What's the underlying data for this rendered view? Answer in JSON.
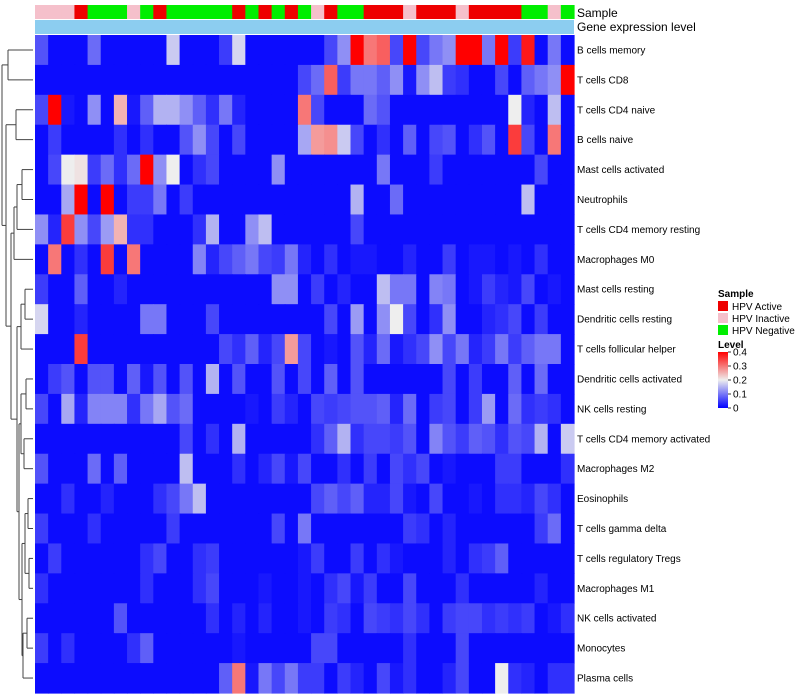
{
  "chart_data": {
    "type": "heatmap",
    "annotation_track_labels": [
      "Sample",
      "Gene expression level"
    ],
    "sample_colors": {
      "HPV Active": "#ee0000",
      "HPV Inactive": "#f5c0cb",
      "HPV Negative": "#00ee00"
    },
    "gene_expression_color": "#8ccdf0",
    "samples": [
      "HPV Inactive",
      "HPV Inactive",
      "HPV Inactive",
      "HPV Active",
      "HPV Negative",
      "HPV Negative",
      "HPV Negative",
      "HPV Inactive",
      "HPV Negative",
      "HPV Active",
      "HPV Negative",
      "HPV Negative",
      "HPV Negative",
      "HPV Negative",
      "HPV Negative",
      "HPV Active",
      "HPV Negative",
      "HPV Active",
      "HPV Negative",
      "HPV Active",
      "HPV Negative",
      "HPV Inactive",
      "HPV Active",
      "HPV Negative",
      "HPV Negative",
      "HPV Active",
      "HPV Active",
      "HPV Active",
      "HPV Inactive",
      "HPV Active",
      "HPV Active",
      "HPV Active",
      "HPV Inactive",
      "HPV Active",
      "HPV Active",
      "HPV Active",
      "HPV Active",
      "HPV Negative",
      "HPV Negative",
      "HPV Inactive",
      "HPV Negative"
    ],
    "rows": [
      "B cells memory",
      "T cells CD8",
      "T cells CD4 naive",
      "B cells naive",
      "Mast cells activated",
      "Neutrophils",
      "T cells CD4 memory resting",
      "Macrophages M0",
      "Mast cells resting",
      "Dendritic cells resting",
      "T cells follicular helper",
      "Dendritic cells activated",
      "NK cells resting",
      "T cells CD4 memory activated",
      "Macrophages M2",
      "Eosinophils",
      "T cells gamma delta",
      "T cells regulatory  Tregs",
      "Macrophages M1",
      "NK cells activated",
      "Monocytes",
      "Plasma cells"
    ],
    "values": [
      [
        0.07,
        0.01,
        0.01,
        0.01,
        0.09,
        0.01,
        0.01,
        0.01,
        0.01,
        0.01,
        0.17,
        0.01,
        0.01,
        0.01,
        0.05,
        0.18,
        0.01,
        0.01,
        0.01,
        0.01,
        0.01,
        0.01,
        0.06,
        0.12,
        0.4,
        0.3,
        0.32,
        0.06,
        0.4,
        0.06,
        0.1,
        0.12,
        0.4,
        0.4,
        0.1,
        0.4,
        0.05,
        0.38,
        0.01,
        0.1,
        0.01
      ],
      [
        0.01,
        0.01,
        0.01,
        0.01,
        0.01,
        0.01,
        0.01,
        0.01,
        0.01,
        0.01,
        0.01,
        0.01,
        0.01,
        0.01,
        0.01,
        0.01,
        0.01,
        0.01,
        0.01,
        0.01,
        0.06,
        0.09,
        0.32,
        0.05,
        0.1,
        0.1,
        0.08,
        0.12,
        0.02,
        0.12,
        0.16,
        0.05,
        0.04,
        0.01,
        0.01,
        0.06,
        0.01,
        0.08,
        0.1,
        0.12,
        0.4
      ],
      [
        0.06,
        0.4,
        0.02,
        0.01,
        0.12,
        0.01,
        0.25,
        0.02,
        0.08,
        0.15,
        0.15,
        0.12,
        0.08,
        0.04,
        0.1,
        0.03,
        0.01,
        0.01,
        0.01,
        0.01,
        0.3,
        0.06,
        0.01,
        0.01,
        0.01,
        0.09,
        0.07,
        0.01,
        0.01,
        0.01,
        0.01,
        0.01,
        0.01,
        0.01,
        0.01,
        0.01,
        0.2,
        0.03,
        0.01,
        0.16,
        0.01
      ],
      [
        0.01,
        0.05,
        0.01,
        0.01,
        0.01,
        0.01,
        0.04,
        0.01,
        0.04,
        0.01,
        0.01,
        0.07,
        0.12,
        0.06,
        0.01,
        0.06,
        0.01,
        0.01,
        0.01,
        0.01,
        0.14,
        0.27,
        0.28,
        0.17,
        0.06,
        0.01,
        0.04,
        0.01,
        0.08,
        0.01,
        0.06,
        0.07,
        0.01,
        0.04,
        0.07,
        0.01,
        0.35,
        0.06,
        0.01,
        0.3,
        0.01
      ],
      [
        0.01,
        0.06,
        0.2,
        0.21,
        0.05,
        0.09,
        0.04,
        0.09,
        0.4,
        0.12,
        0.2,
        0.01,
        0.04,
        0.06,
        0.01,
        0.01,
        0.01,
        0.01,
        0.12,
        0.01,
        0.01,
        0.01,
        0.01,
        0.01,
        0.01,
        0.01,
        0.1,
        0.01,
        0.01,
        0.01,
        0.05,
        0.01,
        0.01,
        0.01,
        0.01,
        0.01,
        0.01,
        0.01,
        0.06,
        0.01,
        0.01
      ],
      [
        0.01,
        0.01,
        0.14,
        0.4,
        0.01,
        0.4,
        0.01,
        0.05,
        0.05,
        0.1,
        0.01,
        0.05,
        0.01,
        0.01,
        0.01,
        0.01,
        0.01,
        0.01,
        0.01,
        0.01,
        0.01,
        0.01,
        0.01,
        0.01,
        0.15,
        0.01,
        0.01,
        0.09,
        0.01,
        0.01,
        0.01,
        0.01,
        0.01,
        0.01,
        0.01,
        0.01,
        0.01,
        0.16,
        0.01,
        0.01,
        0.01
      ],
      [
        0.12,
        0.03,
        0.35,
        0.12,
        0.06,
        0.13,
        0.25,
        0.04,
        0.04,
        0.01,
        0.01,
        0.01,
        0.04,
        0.15,
        0.01,
        0.01,
        0.12,
        0.16,
        0.01,
        0.01,
        0.01,
        0.01,
        0.01,
        0.01,
        0.06,
        0.01,
        0.01,
        0.01,
        0.01,
        0.01,
        0.01,
        0.01,
        0.01,
        0.01,
        0.01,
        0.01,
        0.01,
        0.01,
        0.01,
        0.01,
        0.01
      ],
      [
        0.01,
        0.3,
        0.01,
        0.04,
        0.01,
        0.35,
        0.01,
        0.3,
        0.01,
        0.01,
        0.01,
        0.01,
        0.11,
        0.03,
        0.06,
        0.08,
        0.1,
        0.06,
        0.05,
        0.1,
        0.03,
        0.01,
        0.04,
        0.01,
        0.02,
        0.02,
        0.01,
        0.01,
        0.03,
        0.01,
        0.01,
        0.05,
        0.01,
        0.02,
        0.02,
        0.01,
        0.02,
        0.01,
        0.04,
        0.01,
        0.01
      ],
      [
        0.05,
        0.01,
        0.01,
        0.08,
        0.01,
        0.01,
        0.03,
        0.01,
        0.01,
        0.01,
        0.01,
        0.01,
        0.01,
        0.01,
        0.01,
        0.01,
        0.01,
        0.01,
        0.12,
        0.12,
        0.01,
        0.05,
        0.01,
        0.03,
        0.01,
        0.01,
        0.16,
        0.1,
        0.1,
        0.01,
        0.11,
        0.1,
        0.01,
        0.02,
        0.05,
        0.03,
        0.02,
        0.06,
        0.01,
        0.02,
        0.01
      ],
      [
        0.18,
        0.01,
        0.01,
        0.03,
        0.01,
        0.01,
        0.01,
        0.01,
        0.1,
        0.1,
        0.01,
        0.01,
        0.01,
        0.06,
        0.01,
        0.01,
        0.01,
        0.01,
        0.01,
        0.01,
        0.01,
        0.01,
        0.06,
        0.01,
        0.13,
        0.01,
        0.12,
        0.2,
        0.06,
        0.01,
        0.04,
        0.12,
        0.01,
        0.01,
        0.03,
        0.04,
        0.06,
        0.01,
        0.05,
        0.01,
        0.01
      ],
      [
        0.01,
        0.01,
        0.01,
        0.35,
        0.01,
        0.01,
        0.01,
        0.01,
        0.01,
        0.01,
        0.01,
        0.01,
        0.01,
        0.01,
        0.06,
        0.04,
        0.08,
        0.03,
        0.06,
        0.27,
        0.06,
        0.01,
        0.02,
        0.01,
        0.07,
        0.03,
        0.09,
        0.02,
        0.04,
        0.06,
        0.12,
        0.06,
        0.1,
        0.03,
        0.05,
        0.1,
        0.05,
        0.08,
        0.1,
        0.1,
        0.01
      ],
      [
        0.01,
        0.05,
        0.07,
        0.01,
        0.07,
        0.07,
        0.01,
        0.08,
        0.02,
        0.07,
        0.01,
        0.07,
        0.01,
        0.15,
        0.01,
        0.07,
        0.01,
        0.01,
        0.07,
        0.01,
        0.06,
        0.01,
        0.08,
        0.01,
        0.07,
        0.01,
        0.01,
        0.01,
        0.01,
        0.01,
        0.01,
        0.06,
        0.01,
        0.05,
        0.01,
        0.01,
        0.08,
        0.01,
        0.09,
        0.01,
        0.01
      ],
      [
        0.06,
        0.01,
        0.14,
        0.03,
        0.11,
        0.11,
        0.11,
        0.04,
        0.1,
        0.14,
        0.07,
        0.09,
        0.01,
        0.01,
        0.01,
        0.01,
        0.02,
        0.01,
        0.05,
        0.03,
        0.01,
        0.06,
        0.05,
        0.06,
        0.07,
        0.07,
        0.08,
        0.03,
        0.09,
        0.01,
        0.05,
        0.06,
        0.01,
        0.05,
        0.13,
        0.01,
        0.09,
        0.04,
        0.05,
        0.04,
        0.01
      ],
      [
        0.01,
        0.01,
        0.01,
        0.01,
        0.01,
        0.01,
        0.01,
        0.01,
        0.01,
        0.01,
        0.01,
        0.06,
        0.01,
        0.04,
        0.01,
        0.15,
        0.01,
        0.01,
        0.01,
        0.01,
        0.01,
        0.04,
        0.08,
        0.15,
        0.04,
        0.06,
        0.06,
        0.05,
        0.07,
        0.01,
        0.11,
        0.07,
        0.05,
        0.08,
        0.07,
        0.04,
        0.07,
        0.06,
        0.15,
        0.01,
        0.17
      ],
      [
        0.07,
        0.01,
        0.01,
        0.01,
        0.09,
        0.01,
        0.08,
        0.01,
        0.01,
        0.01,
        0.01,
        0.16,
        0.01,
        0.01,
        0.01,
        0.04,
        0.01,
        0.03,
        0.06,
        0.02,
        0.06,
        0.01,
        0.01,
        0.04,
        0.01,
        0.05,
        0.01,
        0.06,
        0.04,
        0.06,
        0.01,
        0.02,
        0.01,
        0.01,
        0.01,
        0.05,
        0.05,
        0.01,
        0.01,
        0.01,
        0.04
      ],
      [
        0.01,
        0.01,
        0.04,
        0.01,
        0.01,
        0.03,
        0.01,
        0.01,
        0.01,
        0.04,
        0.06,
        0.1,
        0.16,
        0.01,
        0.01,
        0.01,
        0.01,
        0.01,
        0.01,
        0.01,
        0.01,
        0.06,
        0.08,
        0.06,
        0.08,
        0.03,
        0.03,
        0.06,
        0.02,
        0.01,
        0.06,
        0.01,
        0.01,
        0.02,
        0.01,
        0.04,
        0.04,
        0.03,
        0.06,
        0.04,
        0.01
      ],
      [
        0.05,
        0.01,
        0.01,
        0.01,
        0.04,
        0.01,
        0.01,
        0.01,
        0.01,
        0.01,
        0.05,
        0.01,
        0.01,
        0.01,
        0.01,
        0.01,
        0.01,
        0.01,
        0.06,
        0.01,
        0.1,
        0.01,
        0.01,
        0.01,
        0.01,
        0.01,
        0.01,
        0.01,
        0.05,
        0.04,
        0.01,
        0.03,
        0.01,
        0.01,
        0.01,
        0.01,
        0.01,
        0.01,
        0.05,
        0.09,
        0.01
      ],
      [
        0.01,
        0.05,
        0.01,
        0.01,
        0.01,
        0.01,
        0.01,
        0.01,
        0.04,
        0.06,
        0.01,
        0.01,
        0.04,
        0.05,
        0.01,
        0.01,
        0.01,
        0.01,
        0.01,
        0.01,
        0.02,
        0.05,
        0.01,
        0.01,
        0.05,
        0.01,
        0.04,
        0.02,
        0.01,
        0.01,
        0.01,
        0.03,
        0.01,
        0.04,
        0.05,
        0.08,
        0.01,
        0.01,
        0.01,
        0.01,
        0.01
      ],
      [
        0.04,
        0.01,
        0.01,
        0.01,
        0.01,
        0.01,
        0.01,
        0.01,
        0.04,
        0.01,
        0.01,
        0.01,
        0.04,
        0.06,
        0.01,
        0.01,
        0.01,
        0.02,
        0.01,
        0.01,
        0.02,
        0.01,
        0.04,
        0.06,
        0.02,
        0.05,
        0.01,
        0.01,
        0.06,
        0.01,
        0.01,
        0.01,
        0.04,
        0.01,
        0.01,
        0.01,
        0.01,
        0.01,
        0.03,
        0.01,
        0.01
      ],
      [
        0.01,
        0.01,
        0.01,
        0.01,
        0.01,
        0.01,
        0.07,
        0.01,
        0.01,
        0.01,
        0.01,
        0.01,
        0.01,
        0.04,
        0.01,
        0.03,
        0.01,
        0.03,
        0.01,
        0.01,
        0.02,
        0.01,
        0.05,
        0.04,
        0.01,
        0.06,
        0.05,
        0.04,
        0.06,
        0.04,
        0.01,
        0.05,
        0.06,
        0.06,
        0.04,
        0.05,
        0.04,
        0.05,
        0.01,
        0.02,
        0.04
      ],
      [
        0.05,
        0.01,
        0.04,
        0.01,
        0.01,
        0.01,
        0.01,
        0.04,
        0.08,
        0.01,
        0.01,
        0.01,
        0.01,
        0.01,
        0.01,
        0.02,
        0.01,
        0.01,
        0.01,
        0.01,
        0.01,
        0.06,
        0.06,
        0.01,
        0.01,
        0.01,
        0.01,
        0.01,
        0.04,
        0.01,
        0.01,
        0.01,
        0.06,
        0.01,
        0.01,
        0.01,
        0.01,
        0.01,
        0.01,
        0.01,
        0.01
      ],
      [
        0.01,
        0.01,
        0.01,
        0.01,
        0.01,
        0.01,
        0.01,
        0.01,
        0.01,
        0.01,
        0.01,
        0.01,
        0.01,
        0.01,
        0.08,
        0.3,
        0.02,
        0.1,
        0.06,
        0.1,
        0.05,
        0.05,
        0.01,
        0.05,
        0.03,
        0.01,
        0.06,
        0.02,
        0.04,
        0.01,
        0.01,
        0.03,
        0.06,
        0.01,
        0.01,
        0.2,
        0.04,
        0.03,
        0.01,
        0.04,
        0.04
      ]
    ],
    "color_scale": {
      "min": 0,
      "max": 0.4,
      "stops": [
        {
          "value": 0,
          "color": "#0000ff"
        },
        {
          "value": 0.2,
          "color": "#eeeeee"
        },
        {
          "value": 0.4,
          "color": "#ff0000"
        }
      ]
    },
    "legend": {
      "sample_title": "Sample",
      "sample_entries": [
        "HPV Active",
        "HPV Inactive",
        "HPV Negative"
      ],
      "level_title": "Level",
      "level_ticks": [
        0.4,
        0.3,
        0.2,
        0.1,
        0
      ],
      "placement": "right"
    },
    "row_dendrogram": true
  }
}
